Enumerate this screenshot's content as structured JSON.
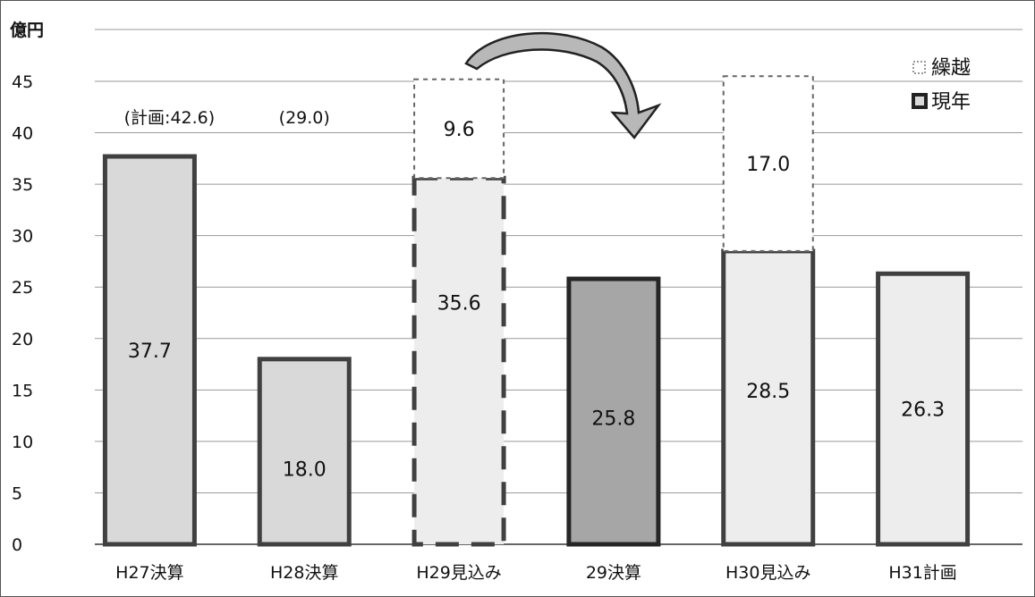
{
  "chart_data": {
    "type": "bar",
    "stacked": true,
    "ylabel": "億円",
    "ylim": [
      0,
      45
    ],
    "yticks": [
      0,
      5,
      10,
      15,
      20,
      25,
      30,
      35,
      40,
      45
    ],
    "grid": true,
    "legend_position": "top-right",
    "categories": [
      "H27決算",
      "H28決算",
      "H29見込み",
      "29決算",
      "H30見込み",
      "H31計画"
    ],
    "series": [
      {
        "name": "現年",
        "values": [
          37.7,
          18.0,
          35.6,
          25.8,
          28.5,
          26.3
        ],
        "labels": [
          "37.7",
          "18.0",
          "35.6",
          "25.8",
          "28.5",
          "26.3"
        ]
      },
      {
        "name": "繰越",
        "values": [
          null,
          null,
          9.6,
          null,
          17.0,
          null
        ],
        "labels": [
          "",
          "",
          "9.6",
          "",
          "17.0",
          ""
        ]
      }
    ],
    "annotations": [
      {
        "category": "H27決算",
        "text": "(計画:42.6)"
      },
      {
        "category": "H28決算",
        "text": "(29.0)"
      }
    ],
    "arrow": {
      "from": "H29見込み",
      "to": "29決算"
    },
    "colors": {
      "bar_fill": "#d9d9d9",
      "bar_fill_dark": "#a6a6a6",
      "bar_fill_light": "#ededed",
      "bar_stroke": "#404040",
      "grid": "#9a9a9a"
    }
  }
}
